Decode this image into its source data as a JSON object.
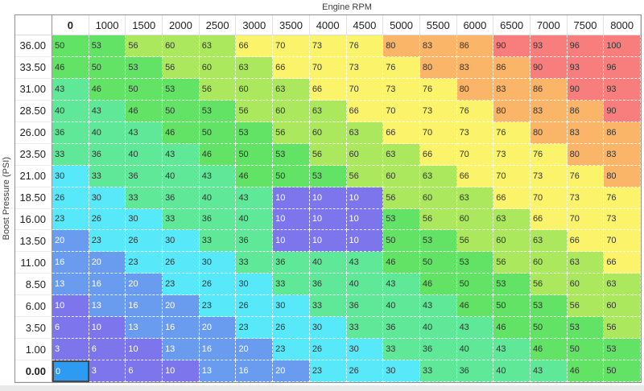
{
  "axes": {
    "x_title": "Engine RPM",
    "y_title": "Boost Pressure (PSI)"
  },
  "table": {
    "column_headers": [
      "0",
      "1000",
      "1500",
      "2000",
      "2500",
      "3000",
      "3500",
      "4000",
      "4500",
      "5000",
      "5500",
      "6000",
      "6500",
      "7000",
      "7500",
      "8000"
    ],
    "row_headers": [
      "36.00",
      "33.50",
      "31.00",
      "28.50",
      "26.00",
      "23.50",
      "21.00",
      "18.50",
      "16.00",
      "13.50",
      "11.00",
      "8.50",
      "6.00",
      "3.50",
      "1.00",
      "0.00"
    ],
    "values": [
      [
        50,
        53,
        56,
        60,
        63,
        66,
        70,
        73,
        76,
        80,
        83,
        86,
        90,
        93,
        96,
        100
      ],
      [
        46,
        50,
        53,
        56,
        60,
        63,
        66,
        70,
        73,
        76,
        80,
        83,
        86,
        90,
        93,
        96
      ],
      [
        43,
        46,
        50,
        53,
        56,
        60,
        63,
        66,
        70,
        73,
        76,
        80,
        83,
        86,
        90,
        93
      ],
      [
        40,
        43,
        46,
        50,
        53,
        56,
        60,
        63,
        66,
        70,
        73,
        76,
        80,
        83,
        86,
        90
      ],
      [
        36,
        40,
        43,
        46,
        50,
        53,
        56,
        60,
        63,
        66,
        70,
        73,
        76,
        80,
        83,
        86
      ],
      [
        33,
        36,
        40,
        43,
        46,
        50,
        53,
        56,
        60,
        63,
        66,
        70,
        73,
        76,
        80,
        83
      ],
      [
        30,
        33,
        36,
        40,
        43,
        46,
        50,
        53,
        56,
        60,
        63,
        66,
        70,
        73,
        76,
        80
      ],
      [
        26,
        30,
        33,
        36,
        40,
        43,
        10,
        10,
        10,
        56,
        60,
        63,
        66,
        70,
        73,
        76
      ],
      [
        23,
        26,
        30,
        33,
        36,
        40,
        10,
        10,
        10,
        53,
        56,
        60,
        63,
        66,
        70,
        73
      ],
      [
        20,
        23,
        26,
        30,
        33,
        36,
        10,
        10,
        10,
        50,
        53,
        56,
        60,
        63,
        66,
        70
      ],
      [
        16,
        20,
        23,
        26,
        30,
        33,
        36,
        40,
        43,
        46,
        50,
        53,
        56,
        60,
        63,
        66
      ],
      [
        13,
        16,
        20,
        23,
        26,
        30,
        33,
        36,
        40,
        43,
        46,
        50,
        53,
        56,
        60,
        63
      ],
      [
        10,
        13,
        16,
        20,
        23,
        26,
        30,
        33,
        36,
        40,
        43,
        46,
        50,
        53,
        56,
        60
      ],
      [
        6,
        10,
        13,
        16,
        20,
        23,
        26,
        30,
        33,
        36,
        40,
        43,
        46,
        50,
        53,
        56
      ],
      [
        3,
        6,
        10,
        13,
        16,
        20,
        23,
        26,
        30,
        33,
        36,
        40,
        43,
        46,
        50,
        53
      ],
      [
        0,
        3,
        6,
        10,
        13,
        16,
        20,
        23,
        26,
        30,
        33,
        36,
        40,
        43,
        46,
        50
      ]
    ],
    "selected": {
      "row": 15,
      "col": 0
    },
    "selected_style": {
      "bg": "#2E9BF2",
      "fg": "#FFFFFF",
      "border": "#464646"
    },
    "palette": [
      {
        "max": 12,
        "bg": "#7C75EB",
        "fg": "#FFFFFF"
      },
      {
        "max": 22,
        "bg": "#699CEE",
        "fg": "#FFFFFF"
      },
      {
        "max": 32,
        "bg": "#57E9F9",
        "fg": "#333333"
      },
      {
        "max": 45,
        "bg": "#5FE897",
        "fg": "#333333"
      },
      {
        "max": 55,
        "bg": "#62E366",
        "fg": "#333333"
      },
      {
        "max": 65,
        "bg": "#ABE85E",
        "fg": "#333333"
      },
      {
        "max": 78,
        "bg": "#FBF36A",
        "fg": "#333333"
      },
      {
        "max": 88,
        "bg": "#FAB569",
        "fg": "#333333"
      },
      {
        "max": 101,
        "bg": "#F87D7D",
        "fg": "#333333"
      }
    ]
  },
  "chart_data": {
    "type": "heatmap",
    "title": "Engine RPM",
    "xlabel": "Engine RPM",
    "ylabel": "Boost Pressure (PSI)",
    "x": [
      0,
      1000,
      1500,
      2000,
      2500,
      3000,
      3500,
      4000,
      4500,
      5000,
      5500,
      6000,
      6500,
      7000,
      7500,
      8000
    ],
    "y": [
      36.0,
      33.5,
      31.0,
      28.5,
      26.0,
      23.5,
      21.0,
      18.5,
      16.0,
      13.5,
      11.0,
      8.5,
      6.0,
      3.5,
      1.0,
      0.0
    ],
    "values": [
      [
        50,
        53,
        56,
        60,
        63,
        66,
        70,
        73,
        76,
        80,
        83,
        86,
        90,
        93,
        96,
        100
      ],
      [
        46,
        50,
        53,
        56,
        60,
        63,
        66,
        70,
        73,
        76,
        80,
        83,
        86,
        90,
        93,
        96
      ],
      [
        43,
        46,
        50,
        53,
        56,
        60,
        63,
        66,
        70,
        73,
        76,
        80,
        83,
        86,
        90,
        93
      ],
      [
        40,
        43,
        46,
        50,
        53,
        56,
        60,
        63,
        66,
        70,
        73,
        76,
        80,
        83,
        86,
        90
      ],
      [
        36,
        40,
        43,
        46,
        50,
        53,
        56,
        60,
        63,
        66,
        70,
        73,
        76,
        80,
        83,
        86
      ],
      [
        33,
        36,
        40,
        43,
        46,
        50,
        53,
        56,
        60,
        63,
        66,
        70,
        73,
        76,
        80,
        83
      ],
      [
        30,
        33,
        36,
        40,
        43,
        46,
        50,
        53,
        56,
        60,
        63,
        66,
        70,
        73,
        76,
        80
      ],
      [
        26,
        30,
        33,
        36,
        40,
        43,
        10,
        10,
        10,
        56,
        60,
        63,
        66,
        70,
        73,
        76
      ],
      [
        23,
        26,
        30,
        33,
        36,
        40,
        10,
        10,
        10,
        53,
        56,
        60,
        63,
        66,
        70,
        73
      ],
      [
        20,
        23,
        26,
        30,
        33,
        36,
        10,
        10,
        10,
        50,
        53,
        56,
        60,
        63,
        66,
        70
      ],
      [
        16,
        20,
        23,
        26,
        30,
        33,
        36,
        40,
        43,
        46,
        50,
        53,
        56,
        60,
        63,
        66
      ],
      [
        13,
        16,
        20,
        23,
        26,
        30,
        33,
        36,
        40,
        43,
        46,
        50,
        53,
        56,
        60,
        63
      ],
      [
        10,
        13,
        16,
        20,
        23,
        26,
        30,
        33,
        36,
        40,
        43,
        46,
        50,
        53,
        56,
        60
      ],
      [
        6,
        10,
        13,
        16,
        20,
        23,
        26,
        30,
        33,
        36,
        40,
        43,
        46,
        50,
        53,
        56
      ],
      [
        3,
        6,
        10,
        13,
        16,
        20,
        23,
        26,
        30,
        33,
        36,
        40,
        43,
        46,
        50,
        53
      ],
      [
        0,
        3,
        6,
        10,
        13,
        16,
        20,
        23,
        26,
        30,
        33,
        36,
        40,
        43,
        46,
        50
      ]
    ]
  }
}
